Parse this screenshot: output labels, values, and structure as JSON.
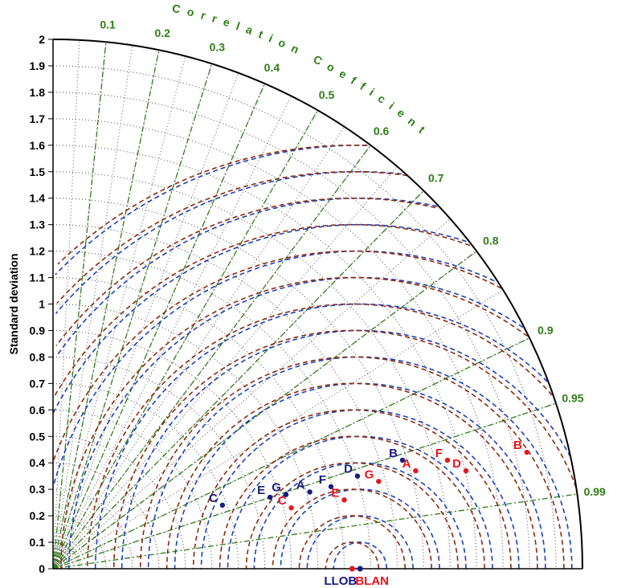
{
  "chart_data": {
    "type": "scatter",
    "title": "",
    "ylabel": "Standard deviation",
    "correlation_label": "Correlation Coefficient",
    "std_ticks": [
      "0",
      "0.1",
      "0.2",
      "0.3",
      "0.4",
      "0.5",
      "0.6",
      "0.7",
      "0.8",
      "0.9",
      "1",
      "1.1",
      "1.2",
      "1.3",
      "1.4",
      "1.5",
      "1.6",
      "1.7",
      "1.8",
      "1.9",
      "2"
    ],
    "std_max": 2,
    "correlation_ticks": [
      "0.1",
      "0.2",
      "0.3",
      "0.4",
      "0.5",
      "0.6",
      "0.7",
      "0.8",
      "0.9",
      "0.95",
      "0.99"
    ],
    "correlation_values": [
      0.1,
      0.2,
      0.3,
      0.4,
      0.5,
      0.6,
      0.7,
      0.8,
      0.9,
      0.95,
      0.99
    ],
    "references": [
      {
        "name": "LLOB",
        "std": 1.16,
        "color": "#1a1a80"
      },
      {
        "name": "BLAN",
        "std": 1.13,
        "color": "#e8141c"
      }
    ],
    "series": [
      {
        "name": "LLOB",
        "color": "#1a1a80",
        "points": [
          {
            "label": "A",
            "x": 0.97,
            "y": 0.29
          },
          {
            "label": "B",
            "x": 1.32,
            "y": 0.41
          },
          {
            "label": "C",
            "x": 0.64,
            "y": 0.24
          },
          {
            "label": "D",
            "x": 1.15,
            "y": 0.35
          },
          {
            "label": "E",
            "x": 0.82,
            "y": 0.27
          },
          {
            "label": "F",
            "x": 1.05,
            "y": 0.31
          },
          {
            "label": "G",
            "x": 0.88,
            "y": 0.28
          }
        ]
      },
      {
        "name": "BLAN",
        "color": "#e8141c",
        "points": [
          {
            "label": "A",
            "x": 1.37,
            "y": 0.37
          },
          {
            "label": "B",
            "x": 1.79,
            "y": 0.44
          },
          {
            "label": "C",
            "x": 0.9,
            "y": 0.23
          },
          {
            "label": "D",
            "x": 1.56,
            "y": 0.37
          },
          {
            "label": "E",
            "x": 1.1,
            "y": 0.26
          },
          {
            "label": "F",
            "x": 1.49,
            "y": 0.41
          },
          {
            "label": "G",
            "x": 1.23,
            "y": 0.33
          }
        ]
      }
    ],
    "colors": {
      "axis": "#000000",
      "grid": "#555555",
      "correlation": "#2e7d17",
      "rms_llob": "#1f3fb8",
      "rms_blan": "#8b2a12"
    }
  }
}
